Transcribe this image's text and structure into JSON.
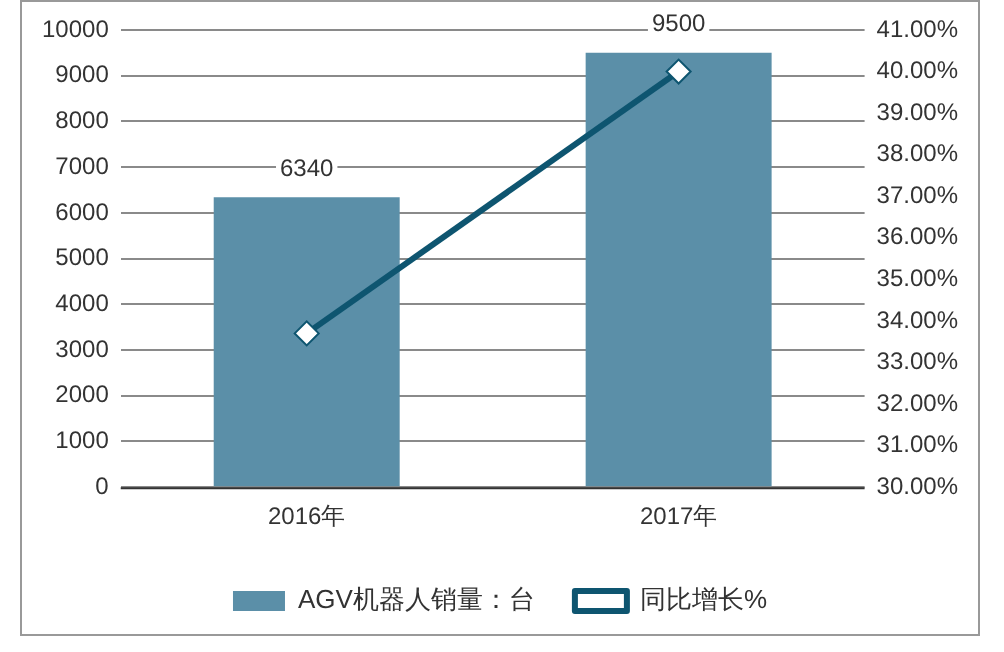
{
  "chart_data": {
    "type": "bar",
    "categories": [
      "2016年",
      "2017年"
    ],
    "series": [
      {
        "name": "AGV机器人销量：台",
        "color": "#5b8fa8",
        "values": [
          6340,
          9500
        ],
        "value_labels": [
          "6340",
          "9500"
        ]
      },
      {
        "name": "同比增长%",
        "type": "line",
        "axis": "y2",
        "color": "#0e5570",
        "values": [
          33.7,
          40.0
        ],
        "marker": "diamond"
      }
    ],
    "ylim": [
      0,
      10000
    ],
    "yticks": [
      0,
      1000,
      2000,
      3000,
      4000,
      5000,
      6000,
      7000,
      8000,
      9000,
      10000
    ],
    "y2lim": [
      30,
      41
    ],
    "y2ticks": [
      {
        "value": 30,
        "label": "30.00%"
      },
      {
        "value": 31,
        "label": "31.00%"
      },
      {
        "value": 32,
        "label": "32.00%"
      },
      {
        "value": 33,
        "label": "33.00%"
      },
      {
        "value": 34,
        "label": "34.00%"
      },
      {
        "value": 35,
        "label": "35.00%"
      },
      {
        "value": 36,
        "label": "36.00%"
      },
      {
        "value": 37,
        "label": "37.00%"
      },
      {
        "value": 38,
        "label": "38.00%"
      },
      {
        "value": 39,
        "label": "39.00%"
      },
      {
        "value": 40,
        "label": "40.00%"
      },
      {
        "value": 41,
        "label": "41.00%"
      }
    ],
    "grid": "y",
    "legend": "bottom"
  }
}
